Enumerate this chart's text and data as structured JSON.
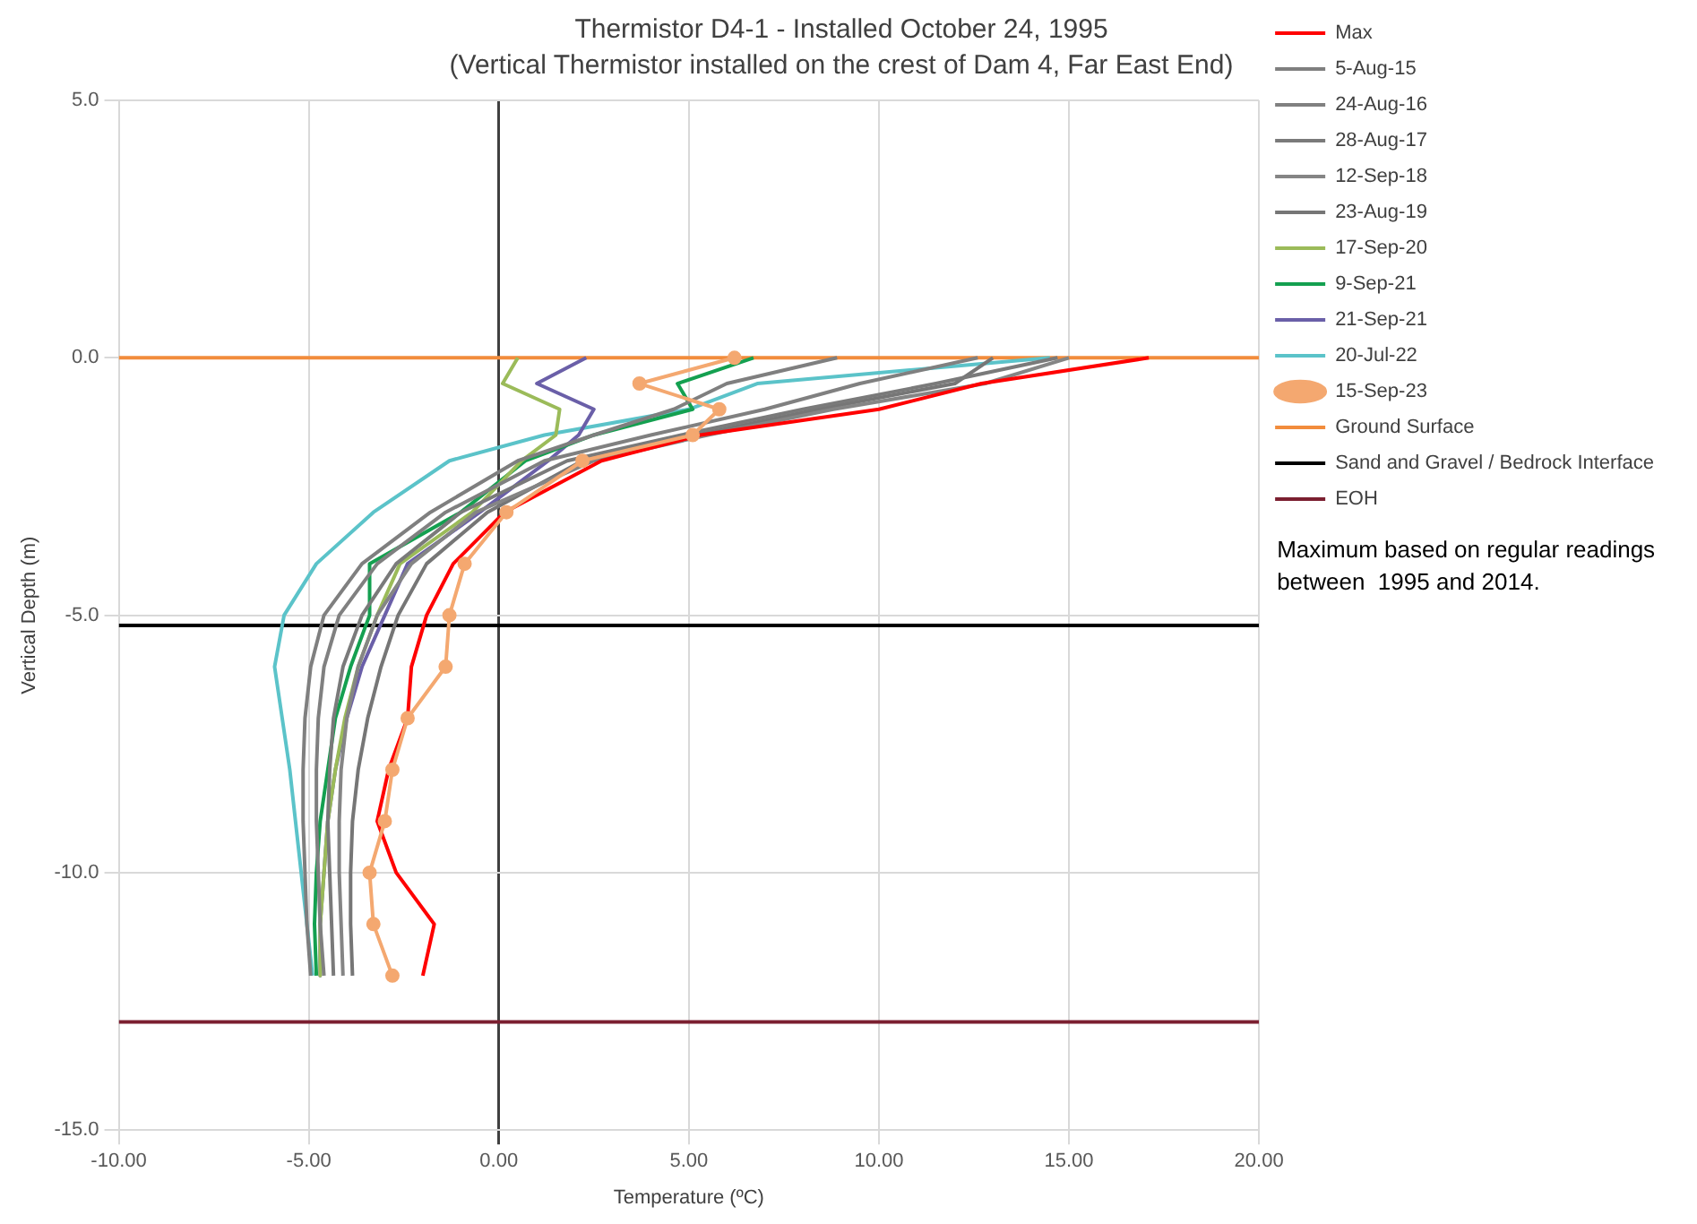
{
  "chart_data": {
    "type": "line",
    "title": "Thermistor D4-1 - Installed October 24, 1995",
    "subtitle": "(Vertical Thermistor installed on the crest of Dam 4, Far East End)",
    "xlabel": "Temperature (ºC)",
    "ylabel": "Vertical Depth (m)",
    "xlim": [
      -10,
      20
    ],
    "ylim": [
      -15,
      5
    ],
    "xticks": [
      {
        "value": -10,
        "label": "-10.00"
      },
      {
        "value": -5,
        "label": "-5.00"
      },
      {
        "value": 0,
        "label": "0.00"
      },
      {
        "value": 5,
        "label": "5.00"
      },
      {
        "value": 10,
        "label": "10.00"
      },
      {
        "value": 15,
        "label": "15.00"
      },
      {
        "value": 20,
        "label": "20.00"
      }
    ],
    "yticks": [
      {
        "value": 5,
        "label": "5.0"
      },
      {
        "value": 0,
        "label": "0.0"
      },
      {
        "value": -5,
        "label": "-5.0"
      },
      {
        "value": -10,
        "label": "-10.0"
      },
      {
        "value": -15,
        "label": "-15.0"
      }
    ],
    "grid": true,
    "legend": "right",
    "marker": "none",
    "line_style": "solid",
    "series": [
      {
        "name": "Max",
        "color": "#ff0000",
        "x": [
          17.1,
          12.7,
          10.0,
          5.3,
          2.7,
          0.15,
          -1.2,
          -1.9,
          -2.3,
          -2.4,
          -2.9,
          -3.2,
          -2.7,
          -1.7,
          -2.0
        ],
        "values": [
          0,
          -0.5,
          -1,
          -1.5,
          -2,
          -3,
          -4,
          -5,
          -6,
          -7,
          -8,
          -9,
          -10,
          -11,
          -12
        ]
      },
      {
        "name": "5-Aug-15",
        "color": "#7f7f7f",
        "x": [
          8.9,
          6.0,
          4.6,
          2.5,
          0.5,
          -1.8,
          -3.6,
          -4.6,
          -4.95,
          -5.1,
          -5.15,
          -5.15,
          -5.1,
          -5.05,
          -4.95
        ],
        "values": [
          0,
          -0.5,
          -1,
          -1.5,
          -2,
          -3,
          -4,
          -5,
          -6,
          -7,
          -8,
          -9,
          -10,
          -11,
          -12
        ]
      },
      {
        "name": "24-Aug-16",
        "color": "#808080",
        "x": [
          12.6,
          9.5,
          7.0,
          4.0,
          1.2,
          -1.4,
          -3.2,
          -4.2,
          -4.6,
          -4.75,
          -4.8,
          -4.8,
          -4.75,
          -4.7,
          -4.6
        ],
        "values": [
          0,
          -0.5,
          -1,
          -1.5,
          -2,
          -3,
          -4,
          -5,
          -6,
          -7,
          -8,
          -9,
          -10,
          -11,
          -12
        ]
      },
      {
        "name": "28-Aug-17",
        "color": "#7a7a7a",
        "x": [
          14.7,
          11.5,
          8.0,
          4.8,
          1.8,
          -1.0,
          -2.7,
          -3.6,
          -4.1,
          -4.35,
          -4.45,
          -4.5,
          -4.45,
          -4.4,
          -4.35
        ],
        "values": [
          0,
          -0.5,
          -1,
          -1.5,
          -2,
          -3,
          -4,
          -5,
          -6,
          -7,
          -8,
          -9,
          -10,
          -11,
          -12
        ]
      },
      {
        "name": "12-Sep-18",
        "color": "#858585",
        "x": [
          15.0,
          12.8,
          8.8,
          5.5,
          2.5,
          -0.6,
          -2.3,
          -3.2,
          -3.7,
          -4.0,
          -4.15,
          -4.2,
          -4.2,
          -4.15,
          -4.1
        ],
        "values": [
          0,
          -0.5,
          -1,
          -1.5,
          -2,
          -3,
          -4,
          -5,
          -6,
          -7,
          -8,
          -9,
          -10,
          -11,
          -12
        ]
      },
      {
        "name": "23-Aug-19",
        "color": "#767676",
        "x": [
          13.0,
          12.0,
          8.4,
          5.2,
          2.2,
          -0.3,
          -1.9,
          -2.65,
          -3.1,
          -3.45,
          -3.7,
          -3.85,
          -3.9,
          -3.9,
          -3.85
        ],
        "values": [
          0,
          -0.5,
          -1,
          -1.5,
          -2,
          -3,
          -4,
          -5,
          -6,
          -7,
          -8,
          -9,
          -10,
          -11,
          -12
        ]
      },
      {
        "name": "17-Sep-20",
        "color": "#9bbb59",
        "x": [
          0.5,
          0.1,
          1.6,
          1.5,
          0.6,
          -0.7,
          -2.6,
          -3.2,
          -3.7,
          -4.05,
          -4.3,
          -4.5,
          -4.6,
          -4.7,
          -4.7
        ],
        "values": [
          0,
          -0.5,
          -1,
          -1.5,
          -2,
          -3,
          -4,
          -5,
          -6,
          -7,
          -8,
          -9,
          -10,
          -11,
          -12
        ]
      },
      {
        "name": "9-Sep-21",
        "color": "#14a050",
        "x": [
          6.7,
          4.7,
          5.1,
          2.5,
          0.7,
          -1.0,
          -3.4,
          -3.4,
          -3.9,
          -4.3,
          -4.5,
          -4.7,
          -4.8,
          -4.85,
          -4.8
        ],
        "values": [
          0,
          -0.5,
          -1,
          -1.5,
          -2,
          -3,
          -4,
          -5,
          -6,
          -7,
          -8,
          -9,
          -10,
          -11,
          -12
        ]
      },
      {
        "name": "21-Sep-21",
        "color": "#6a5fa8",
        "x": [
          2.3,
          1.0,
          2.5,
          2.1,
          1.3,
          -0.5,
          -2.4,
          -3.0,
          -3.6,
          -4.0,
          -4.3,
          -4.5,
          -4.6,
          -4.7,
          -4.7
        ],
        "values": [
          0,
          -0.5,
          -1,
          -1.5,
          -2,
          -3,
          -4,
          -5,
          -6,
          -7,
          -8,
          -9,
          -10,
          -11,
          -12
        ]
      },
      {
        "name": "20-Jul-22",
        "color": "#5bc3c9",
        "x": [
          14.5,
          6.8,
          5.0,
          1.2,
          -1.3,
          -3.3,
          -4.8,
          -5.65,
          -5.9,
          -5.7,
          -5.5,
          -5.35,
          -5.2,
          -5.05,
          -4.9
        ],
        "values": [
          0,
          -0.5,
          -1,
          -1.5,
          -2,
          -3,
          -4,
          -5,
          -6,
          -7,
          -8,
          -9,
          -10,
          -11,
          -12
        ]
      },
      {
        "name": "15-Sep-23",
        "color": "#f4a870",
        "marker": "circle",
        "x": [
          6.2,
          3.7,
          5.8,
          5.1,
          2.2,
          0.2,
          -0.9,
          -1.3,
          -1.4,
          -2.4,
          -2.8,
          -3.0,
          -3.4,
          -3.3,
          -2.8
        ],
        "values": [
          0,
          -0.5,
          -1,
          -1.5,
          -2,
          -3,
          -4,
          -5,
          -6,
          -7,
          -8,
          -9,
          -10,
          -11,
          -12
        ]
      }
    ],
    "ref_lines": [
      {
        "axis": "y",
        "value": 0,
        "label": "Ground Surface",
        "color": "#f28c3c"
      },
      {
        "axis": "y",
        "value": -5.2,
        "label": "Sand and Gravel / Bedrock Interface",
        "color": "#000000"
      },
      {
        "axis": "y",
        "value": -12.9,
        "label": "EOH",
        "color": "#7b1f30"
      }
    ],
    "annotations": [
      "Maximum based on regular readings between  1995 and 2014."
    ]
  }
}
